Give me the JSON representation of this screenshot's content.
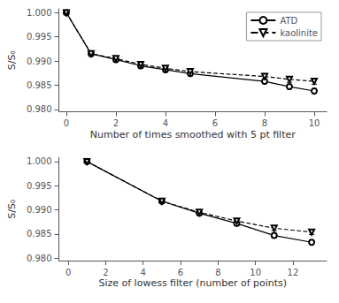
{
  "chart_data": [
    {
      "type": "line",
      "xlabel": "Number of times smoothed with 5 pt filter",
      "ylabel": "S/S₀",
      "xlim": [
        -0.3,
        10.5
      ],
      "ylim": [
        0.9795,
        1.0008
      ],
      "xticks": [
        0,
        2,
        4,
        6,
        8,
        10
      ],
      "yticks": [
        {
          "value": 0.98,
          "label": "0.980"
        },
        0.985,
        {
          "value": 0.99,
          "label": "0.990"
        },
        0.995,
        {
          "value": 1.0,
          "label": "1.000"
        }
      ],
      "grid": false,
      "legend": "upper right",
      "series": [
        {
          "name": "ATD",
          "color": "#000000",
          "marker": "circle",
          "line_style": "solid",
          "x": [
            0,
            1,
            2,
            3,
            4,
            5,
            8,
            9,
            10
          ],
          "values": [
            1.0,
            0.9915,
            0.9903,
            0.989,
            0.9882,
            0.9874,
            0.9858,
            0.9847,
            0.9838
          ],
          "yerr": [
            0.0,
            0.0005,
            0.0005,
            0.0005,
            0.0005,
            0.0005,
            0.0005,
            0.0005,
            0.0005
          ]
        },
        {
          "name": "kaolinite",
          "color": "#000000",
          "marker": "triangle-down",
          "line_style": "dashed",
          "x": [
            0,
            1,
            2,
            3,
            4,
            5,
            8,
            9,
            10
          ],
          "values": [
            1.0,
            0.9915,
            0.9905,
            0.9893,
            0.9885,
            0.9878,
            0.9868,
            0.9862,
            0.9858
          ],
          "yerr": [
            0.0,
            0.0005,
            0.0005,
            0.0005,
            0.0005,
            0.0005,
            0.0006,
            0.0006,
            0.0006
          ]
        }
      ]
    },
    {
      "type": "line",
      "xlabel": "Size of lowess filter (number of points)",
      "ylabel": "S/S₀",
      "xlim": [
        -0.5,
        13.8
      ],
      "ylim": [
        0.9795,
        1.0008
      ],
      "xticks": [
        0,
        2,
        4,
        6,
        8,
        10,
        12
      ],
      "yticks": [
        {
          "value": 0.98,
          "label": "0.980"
        },
        0.985,
        {
          "value": 0.99,
          "label": "0.990"
        },
        0.995,
        {
          "value": 1.0,
          "label": "1.000"
        }
      ],
      "grid": false,
      "series": [
        {
          "name": "ATD",
          "color": "#000000",
          "marker": "circle",
          "line_style": "solid",
          "x": [
            1,
            5,
            7,
            9,
            11,
            13
          ],
          "values": [
            1.0,
            0.9918,
            0.9893,
            0.9872,
            0.9847,
            0.9833
          ],
          "yerr": [
            0.0,
            0.0004,
            0.0004,
            0.0005,
            0.0005,
            0.0005
          ]
        },
        {
          "name": "kaolinite",
          "color": "#000000",
          "marker": "triangle-down",
          "line_style": "dashed",
          "x": [
            1,
            5,
            7,
            9,
            11,
            13
          ],
          "values": [
            1.0,
            0.9918,
            0.9895,
            0.9877,
            0.9862,
            0.9854
          ],
          "yerr": [
            0.0,
            0.0004,
            0.0004,
            0.0005,
            0.0005,
            0.0005
          ]
        }
      ]
    }
  ]
}
